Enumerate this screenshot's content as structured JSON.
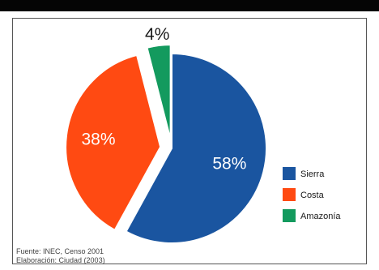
{
  "chart_data": {
    "type": "pie",
    "title": "",
    "slices": [
      {
        "label": "Sierra",
        "value": 58,
        "value_label": "58%",
        "color": "#1a55a0"
      },
      {
        "label": "Costa",
        "value": 38,
        "value_label": "38%",
        "color": "#ff4a12"
      },
      {
        "label": "Amazonía",
        "value": 4,
        "value_label": "4%",
        "color": "#139a5e"
      }
    ],
    "legend_position": "bottom-right",
    "exploded": true
  },
  "source": {
    "line1": "Fuente: INEC, Censo 2001",
    "line2": "Elaboración: Ciudad (2003)"
  }
}
